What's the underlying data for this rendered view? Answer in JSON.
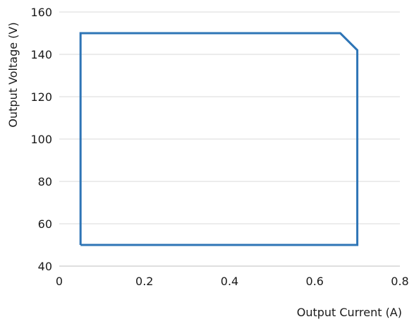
{
  "chart_data": {
    "type": "line",
    "title": "",
    "xlabel": "Output Current (A)",
    "ylabel": "Output Voltage (V)",
    "xlim": [
      0,
      0.8
    ],
    "ylim": [
      40,
      160
    ],
    "x_ticks": [
      "0",
      "0.2",
      "0.4",
      "0.6",
      "0.8"
    ],
    "y_ticks": [
      "40",
      "60",
      "80",
      "100",
      "120",
      "140",
      "160"
    ],
    "grid": "horizontal",
    "legend": "none",
    "series": [
      {
        "color": "#2e75b6",
        "points": [
          [
            0.05,
            50
          ],
          [
            0.05,
            150
          ],
          [
            0.66,
            150
          ],
          [
            0.7,
            142
          ],
          [
            0.7,
            50
          ],
          [
            0.05,
            50
          ]
        ]
      }
    ]
  }
}
